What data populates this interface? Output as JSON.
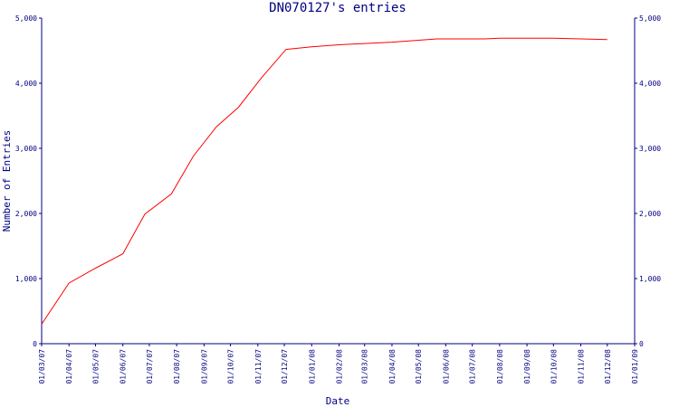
{
  "colors": {
    "axis": "#000080",
    "line": "#ff0000",
    "background": "#ffffff"
  },
  "chart_data": {
    "type": "line",
    "title": "DN070127's entries",
    "xlabel": "Date",
    "ylabel": "Number of Entries",
    "ylim": [
      0,
      5000
    ],
    "y_ticks": [
      0,
      1000,
      2000,
      3000,
      4000,
      5000
    ],
    "y_tick_labels": [
      "0",
      "1,000",
      "2,000",
      "3,000",
      "4,000",
      "5,000"
    ],
    "x_range": [
      "2007-03-01",
      "2009-01-01"
    ],
    "x_ticks": [
      "2007-03-01",
      "2007-04-01",
      "2007-05-01",
      "2007-06-01",
      "2007-07-01",
      "2007-08-01",
      "2007-09-01",
      "2007-10-01",
      "2007-11-01",
      "2007-12-01",
      "2008-01-01",
      "2008-02-01",
      "2008-03-01",
      "2008-04-01",
      "2008-05-01",
      "2008-06-01",
      "2008-07-01",
      "2008-08-01",
      "2008-09-01",
      "2008-10-01",
      "2008-11-01",
      "2008-12-01",
      "2009-01-01"
    ],
    "x_tick_labels": [
      "01/03/07",
      "01/04/07",
      "01/05/07",
      "01/06/07",
      "01/07/07",
      "01/08/07",
      "01/09/07",
      "01/10/07",
      "01/11/07",
      "01/12/07",
      "01/01/08",
      "01/02/08",
      "01/03/08",
      "01/04/08",
      "01/05/08",
      "01/06/08",
      "01/07/08",
      "01/08/08",
      "01/09/08",
      "01/10/08",
      "01/11/08",
      "01/12/08",
      "01/01/09"
    ],
    "grid": false,
    "series": [
      {
        "x": [
          "2007-03-01",
          "2007-04-01",
          "2007-05-01",
          "2007-06-01",
          "2007-06-26",
          "2007-07-26",
          "2007-08-20",
          "2007-09-15",
          "2007-10-10",
          "2007-11-05",
          "2007-12-03",
          "2008-01-01",
          "2008-02-01",
          "2008-03-01",
          "2008-04-01",
          "2008-05-01",
          "2008-05-22",
          "2008-06-15",
          "2008-07-15",
          "2008-08-01",
          "2008-09-01",
          "2008-10-01",
          "2008-11-01",
          "2008-12-01"
        ],
        "y": [
          300,
          930,
          1160,
          1380,
          1990,
          2300,
          2880,
          3330,
          3630,
          4080,
          4520,
          4560,
          4590,
          4610,
          4630,
          4660,
          4680,
          4680,
          4680,
          4690,
          4690,
          4690,
          4680,
          4670
        ]
      }
    ]
  }
}
